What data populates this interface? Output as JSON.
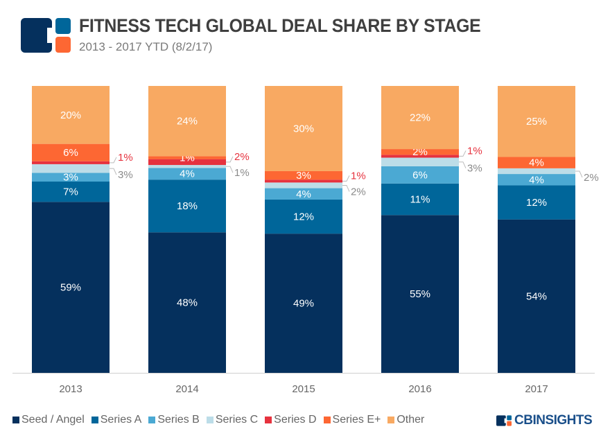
{
  "header": {
    "title": "FITNESS TECH GLOBAL DEAL SHARE BY STAGE",
    "subtitle": "2013 - 2017 YTD (8/2/17)",
    "logo": "CB Insights logo"
  },
  "brand": {
    "text": "CBINSIGHTS"
  },
  "chart_data": {
    "type": "bar",
    "stacked": true,
    "percent_stacked": true,
    "categories": [
      "2013",
      "2014",
      "2015",
      "2016",
      "2017"
    ],
    "ylim": [
      0,
      100
    ],
    "grid": false,
    "legend_position": "bottom",
    "series": [
      {
        "name": "Seed / Angel",
        "color": "#05305d",
        "values": [
          59,
          48,
          49,
          55,
          54
        ]
      },
      {
        "name": "Series A",
        "color": "#00669a",
        "values": [
          7,
          18,
          12,
          11,
          12
        ]
      },
      {
        "name": "Series B",
        "color": "#4ba9d3",
        "values": [
          3,
          4,
          4,
          6,
          4
        ]
      },
      {
        "name": "Series C",
        "color": "#bcdde8",
        "values": [
          3,
          1,
          2,
          3,
          2
        ]
      },
      {
        "name": "Series D",
        "color": "#e6323e",
        "values": [
          1,
          2,
          1,
          1,
          0
        ]
      },
      {
        "name": "Series E+",
        "color": "#fd6733",
        "values": [
          6,
          1,
          3,
          2,
          4
        ]
      },
      {
        "name": "Other",
        "color": "#f8a962",
        "values": [
          20,
          24,
          30,
          22,
          25
        ]
      }
    ],
    "data_label_suffix": "%"
  }
}
